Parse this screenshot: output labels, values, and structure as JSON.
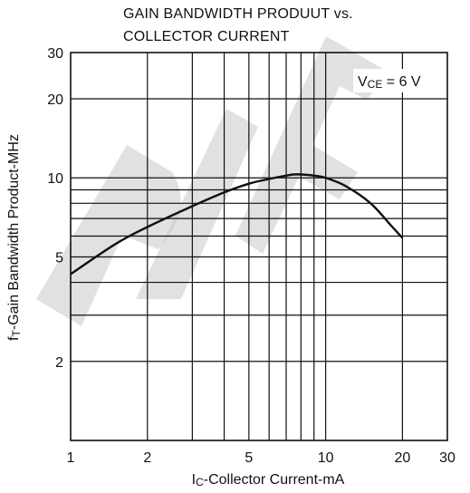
{
  "chart_data": {
    "type": "line",
    "title_line1": "GAIN BANDWIDTH PRODUUT vs.",
    "title_line2": "COLLECTOR CURRENT",
    "xlabel_main": "I",
    "xlabel_sub": "C",
    "xlabel_rest": "-Collector Current-mA",
    "ylabel_main": "f",
    "ylabel_sub": "T",
    "ylabel_rest": "-Gain Bandwidth Product-MHz",
    "x_scale": "log",
    "y_scale": "log",
    "xlim": [
      1,
      30
    ],
    "ylim": [
      1,
      30
    ],
    "x_ticks": [
      1,
      2,
      5,
      10,
      20,
      30
    ],
    "y_ticks": [
      2,
      5,
      10,
      20,
      30
    ],
    "x_minor": [
      3,
      4,
      6,
      7,
      8,
      9
    ],
    "y_minor": [
      3,
      4,
      6,
      7,
      8,
      9
    ],
    "grid": true,
    "annotation": {
      "main": "V",
      "sub": "CE",
      "rest": " = 6 V"
    },
    "series": [
      {
        "x": [
          1,
          1.5,
          2,
          3,
          4,
          5,
          6,
          7,
          7.5,
          8,
          9,
          10,
          12,
          15,
          18,
          20
        ],
        "y": [
          4.3,
          5.6,
          6.5,
          7.8,
          8.8,
          9.5,
          9.9,
          10.2,
          10.3,
          10.3,
          10.2,
          10.0,
          9.3,
          8.0,
          6.6,
          5.9
        ]
      }
    ]
  }
}
